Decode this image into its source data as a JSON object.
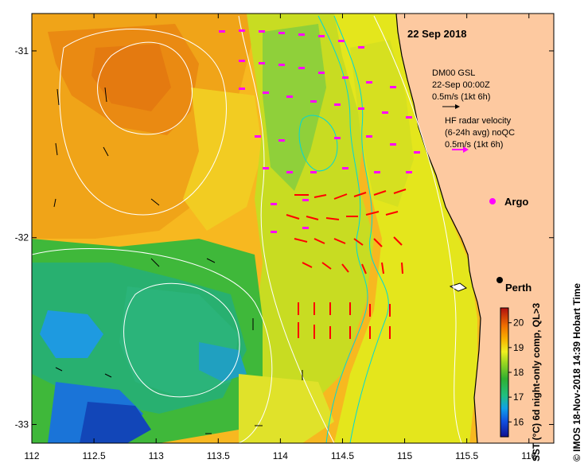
{
  "map": {
    "date_label": "22 Sep 2018",
    "legend_gsl": {
      "line1": "DM00 GSL",
      "line2": "22-Sep 00:00Z",
      "line3": "0.5m/s (1kt 6h)"
    },
    "legend_radar": {
      "line1": "HF radar velocity",
      "line2": "(6-24h avg) noQC",
      "line3": "0.5m/s (1kt 6h)"
    },
    "argo_label": "Argo",
    "city_label": "Perth",
    "colorbar": {
      "label": "SST (°C) 6d night-only comp, QL>3",
      "ticks": [
        "16",
        "17",
        "18",
        "19",
        "20"
      ],
      "min": 15.4,
      "max": 20.6
    },
    "credit": "© IMOS 18-Nov-2018 14:39 Hobart Time",
    "x_ticks": [
      "112",
      "112.5",
      "113",
      "113.5",
      "114",
      "114.5",
      "115",
      "115.5",
      "116"
    ],
    "y_ticks": [
      "-31",
      "-32",
      "-33"
    ],
    "lon_range": [
      112,
      116.2
    ],
    "lat_range": [
      -33.1,
      -30.8
    ],
    "colors": {
      "land": "#fdc9a0",
      "radar_arrow": "#ff0000",
      "glider_arrow": "#ff00ff",
      "contour_white": "#ffffff",
      "contour_cyan": "#00d8d8"
    }
  }
}
